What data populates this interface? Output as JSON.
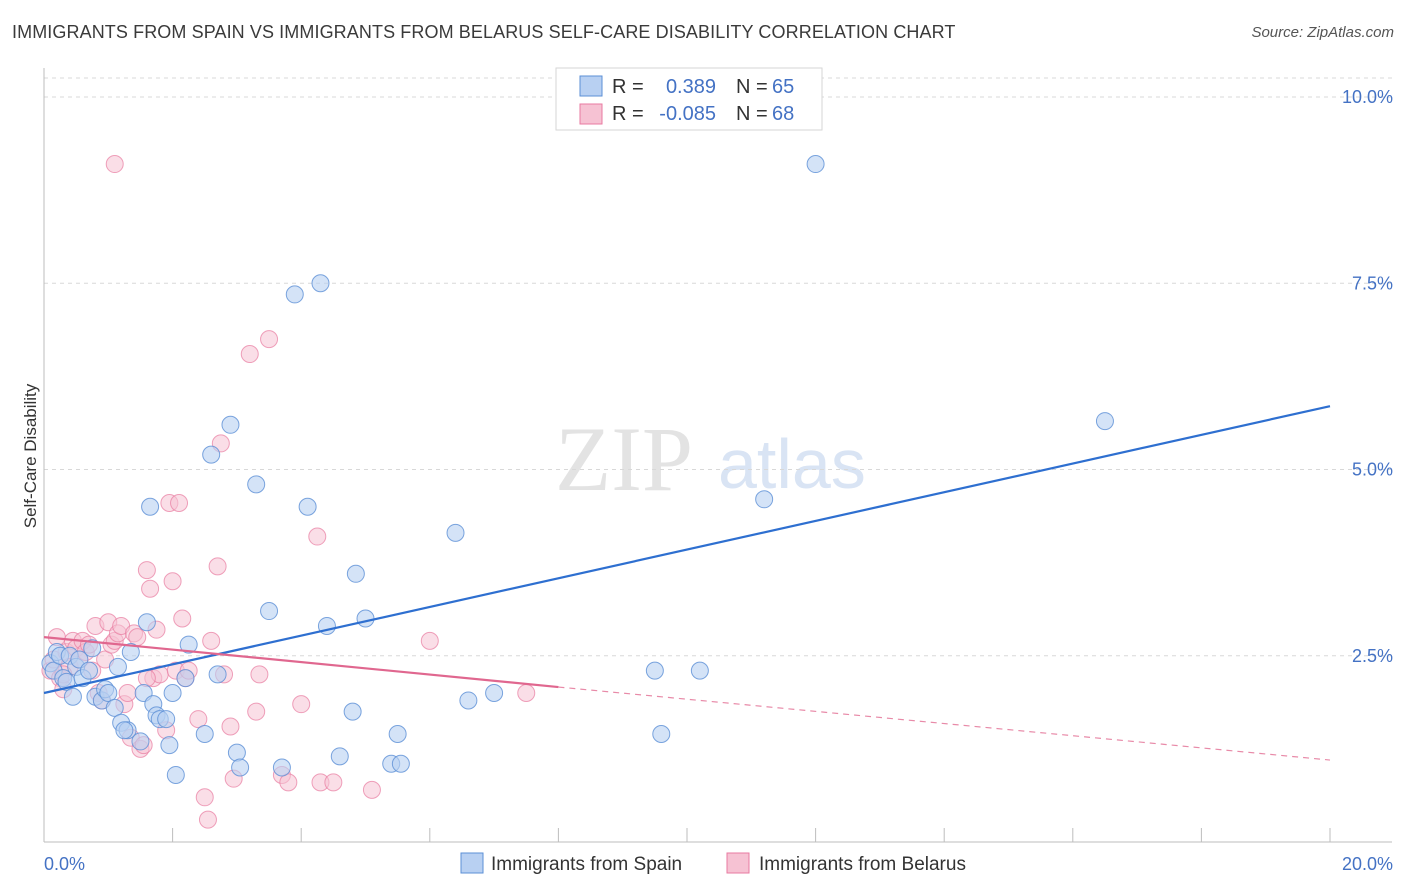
{
  "title": "IMMIGRANTS FROM SPAIN VS IMMIGRANTS FROM BELARUS SELF-CARE DISABILITY CORRELATION CHART",
  "source": "Source: ZipAtlas.com",
  "watermark": {
    "zip": "ZIP",
    "atlas": "atlas"
  },
  "colors": {
    "spain": "#5b8fd6",
    "spain_fill": "#b8d0f2",
    "belarus": "#e87aa0",
    "belarus_fill": "#f6c2d3",
    "axis_text": "#4472c4",
    "grid": "#d8d8d8"
  },
  "legend": {
    "r_label": "R =",
    "n_label": "N =",
    "spain": {
      "r": "0.389",
      "n": "65"
    },
    "belarus": {
      "r": "-0.085",
      "n": "68"
    }
  },
  "chart_data": {
    "type": "scatter",
    "title": "IMMIGRANTS FROM SPAIN VS IMMIGRANTS FROM BELARUS SELF-CARE DISABILITY CORRELATION CHART",
    "xlabel": "",
    "ylabel": "Self-Care Disability",
    "xlim": [
      0,
      20
    ],
    "ylim": [
      0,
      10.5
    ],
    "x_tick_labels": [
      "0.0%",
      "20.0%"
    ],
    "y_ticks": [
      2.5,
      5.0,
      7.5,
      10.0
    ],
    "y_tick_labels": [
      "2.5%",
      "5.0%",
      "7.5%",
      "10.0%"
    ],
    "grid": true,
    "legend_position": "top-center",
    "series": [
      {
        "name": "Immigrants from Spain",
        "r": 0.389,
        "n": 65,
        "trend": {
          "x0": 0,
          "y0": 2.0,
          "x1": 20,
          "y1": 5.85
        },
        "points": [
          [
            0.1,
            2.4
          ],
          [
            0.15,
            2.3
          ],
          [
            0.2,
            2.55
          ],
          [
            0.25,
            2.5
          ],
          [
            0.3,
            2.2
          ],
          [
            0.35,
            2.15
          ],
          [
            0.4,
            2.5
          ],
          [
            0.45,
            1.95
          ],
          [
            0.5,
            2.35
          ],
          [
            0.55,
            2.45
          ],
          [
            0.6,
            2.2
          ],
          [
            0.7,
            2.3
          ],
          [
            0.75,
            2.6
          ],
          [
            0.8,
            1.95
          ],
          [
            0.9,
            1.9
          ],
          [
            0.95,
            2.05
          ],
          [
            1.0,
            2.0
          ],
          [
            1.1,
            1.8
          ],
          [
            1.15,
            2.35
          ],
          [
            1.2,
            1.6
          ],
          [
            1.3,
            1.5
          ],
          [
            1.35,
            2.55
          ],
          [
            1.5,
            1.35
          ],
          [
            1.55,
            2.0
          ],
          [
            1.6,
            2.95
          ],
          [
            1.65,
            4.5
          ],
          [
            1.7,
            1.85
          ],
          [
            1.75,
            1.7
          ],
          [
            1.8,
            1.65
          ],
          [
            1.9,
            1.65
          ],
          [
            1.95,
            1.3
          ],
          [
            2.0,
            2.0
          ],
          [
            2.05,
            0.9
          ],
          [
            2.2,
            2.2
          ],
          [
            2.25,
            2.65
          ],
          [
            2.5,
            1.45
          ],
          [
            2.7,
            2.25
          ],
          [
            2.9,
            5.6
          ],
          [
            3.0,
            1.2
          ],
          [
            3.05,
            1.0
          ],
          [
            3.3,
            4.8
          ],
          [
            3.5,
            3.1
          ],
          [
            3.7,
            1.0
          ],
          [
            3.9,
            7.35
          ],
          [
            4.1,
            4.5
          ],
          [
            4.3,
            7.5
          ],
          [
            4.4,
            2.9
          ],
          [
            4.6,
            1.15
          ],
          [
            4.8,
            1.75
          ],
          [
            4.85,
            3.6
          ],
          [
            5.0,
            3.0
          ],
          [
            5.4,
            1.05
          ],
          [
            5.5,
            1.45
          ],
          [
            5.55,
            1.05
          ],
          [
            6.4,
            4.15
          ],
          [
            6.6,
            1.9
          ],
          [
            7.0,
            2.0
          ],
          [
            9.5,
            2.3
          ],
          [
            9.6,
            1.45
          ],
          [
            10.2,
            2.3
          ],
          [
            11.2,
            4.6
          ],
          [
            12.0,
            9.1
          ],
          [
            16.5,
            5.65
          ],
          [
            2.6,
            5.2
          ],
          [
            1.25,
            1.5
          ]
        ]
      },
      {
        "name": "Immigrants from Belarus",
        "r": -0.085,
        "n": 68,
        "trend": {
          "x0": 0,
          "y0": 2.75,
          "x1": 8.0,
          "y1": 2.08
        },
        "trend_dashed": {
          "x0": 8.0,
          "y0": 2.08,
          "x1": 20,
          "y1": 1.1
        },
        "points": [
          [
            0.1,
            2.3
          ],
          [
            0.15,
            2.45
          ],
          [
            0.2,
            2.75
          ],
          [
            0.25,
            2.2
          ],
          [
            0.3,
            2.05
          ],
          [
            0.35,
            2.55
          ],
          [
            0.4,
            2.35
          ],
          [
            0.45,
            2.7
          ],
          [
            0.5,
            2.6
          ],
          [
            0.55,
            2.45
          ],
          [
            0.6,
            2.7
          ],
          [
            0.65,
            2.55
          ],
          [
            0.7,
            2.65
          ],
          [
            0.75,
            2.3
          ],
          [
            0.8,
            2.9
          ],
          [
            0.85,
            2.0
          ],
          [
            0.9,
            1.9
          ],
          [
            0.95,
            2.45
          ],
          [
            1.0,
            2.95
          ],
          [
            1.05,
            2.65
          ],
          [
            1.1,
            2.7
          ],
          [
            1.15,
            2.8
          ],
          [
            1.2,
            2.9
          ],
          [
            1.25,
            1.85
          ],
          [
            1.3,
            2.0
          ],
          [
            1.35,
            1.4
          ],
          [
            1.4,
            2.8
          ],
          [
            1.45,
            2.75
          ],
          [
            1.5,
            1.25
          ],
          [
            1.55,
            1.3
          ],
          [
            1.6,
            3.65
          ],
          [
            1.65,
            3.4
          ],
          [
            1.7,
            2.2
          ],
          [
            1.75,
            2.85
          ],
          [
            1.8,
            2.25
          ],
          [
            1.9,
            1.5
          ],
          [
            1.95,
            4.55
          ],
          [
            2.0,
            3.5
          ],
          [
            2.05,
            2.3
          ],
          [
            2.1,
            4.55
          ],
          [
            2.15,
            3.0
          ],
          [
            2.2,
            2.2
          ],
          [
            2.25,
            2.3
          ],
          [
            2.4,
            1.65
          ],
          [
            2.5,
            0.6
          ],
          [
            2.55,
            0.3
          ],
          [
            2.6,
            2.7
          ],
          [
            2.7,
            3.7
          ],
          [
            2.75,
            5.35
          ],
          [
            2.8,
            2.25
          ],
          [
            2.9,
            1.55
          ],
          [
            2.95,
            0.85
          ],
          [
            3.2,
            6.55
          ],
          [
            3.3,
            1.75
          ],
          [
            3.35,
            2.25
          ],
          [
            3.5,
            6.75
          ],
          [
            3.7,
            0.9
          ],
          [
            3.8,
            0.8
          ],
          [
            4.0,
            1.85
          ],
          [
            4.25,
            4.1
          ],
          [
            4.3,
            0.8
          ],
          [
            4.5,
            0.8
          ],
          [
            5.1,
            0.7
          ],
          [
            6.0,
            2.7
          ],
          [
            7.5,
            2.0
          ],
          [
            1.1,
            9.1
          ],
          [
            0.3,
            2.25
          ],
          [
            1.6,
            2.2
          ]
        ]
      }
    ]
  },
  "bottom_legend": {
    "spain_label": "Immigrants from Spain",
    "belarus_label": "Immigrants from Belarus"
  }
}
